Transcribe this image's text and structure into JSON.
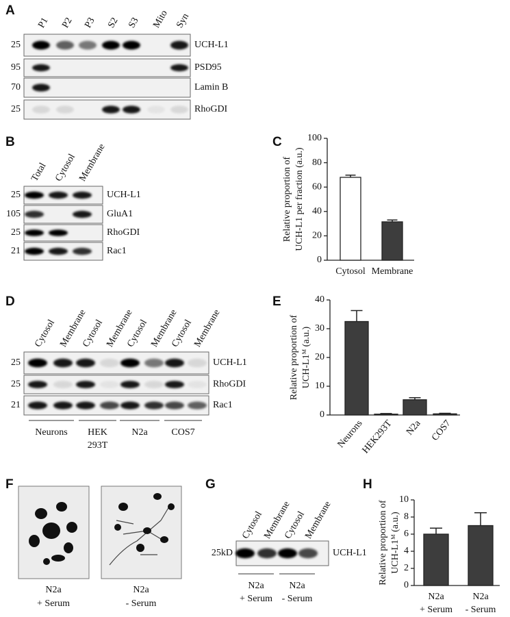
{
  "blots": [
    {
      "letter": "A",
      "lanes": [
        "P1",
        "P2",
        "P3",
        "S2",
        "S3",
        "Mito",
        "Syn"
      ],
      "markers": [
        "25",
        "95",
        "70",
        "25"
      ],
      "proteins": [
        "UCH-L1",
        "PSD95",
        "Lamin B",
        "RhoGDI"
      ]
    },
    {
      "letter": "B",
      "lanes": [
        "Total",
        "Cytosol",
        "Membrane"
      ],
      "markers": [
        "25",
        "105",
        "25",
        "21"
      ],
      "proteins": [
        "UCH-L1",
        "GluA1",
        "RhoGDI",
        "Rac1"
      ]
    },
    {
      "letter": "D",
      "lanes": [
        "Cytosol",
        "Membrane",
        "Cytosol",
        "Membrane",
        "Cytosol",
        "Membrane",
        "Cytosol",
        "Membrane"
      ],
      "markers": [
        "25",
        "25",
        "21"
      ],
      "proteins": [
        "UCH-L1",
        "RhoGDI",
        "Rac1"
      ],
      "groups": [
        [
          "Neurons"
        ],
        [
          "HEK",
          "293T"
        ],
        [
          "N2a"
        ],
        [
          "COS7"
        ]
      ]
    },
    {
      "letter": "G",
      "lanes": [
        "Cytosol",
        "Membrane",
        "Cytosol",
        "Membrane"
      ],
      "markers": [
        "25kD"
      ],
      "proteins": [
        "UCH-L1"
      ],
      "groups": [
        [
          "N2a",
          "+ Serum"
        ],
        [
          "N2a",
          "- Serum"
        ]
      ]
    }
  ],
  "images": {
    "letter": "F",
    "captions": [
      [
        "N2a",
        "+ Serum"
      ],
      [
        "N2a",
        "- Serum"
      ]
    ]
  },
  "chart_data": [
    {
      "type": "bar",
      "letter": "C",
      "ylabel": [
        "Relative proportion of",
        "UCH-L1 per fraction (a.u.)"
      ],
      "categories": [
        [
          "Cytosol"
        ],
        [
          "Membrane"
        ]
      ],
      "values": [
        68,
        31.5
      ],
      "errors": [
        1.8,
        1.5
      ],
      "colors": [
        "#ffffff",
        "#3d3d3d"
      ],
      "ylim": [
        0,
        100
      ],
      "yticks": [
        0,
        20,
        40,
        60,
        80,
        100
      ]
    },
    {
      "type": "bar",
      "letter": "E",
      "ylabel": [
        "Relative proportion of",
        "UCH-L1ᴹ (a.u.)"
      ],
      "categories": [
        [
          "Neurons"
        ],
        [
          "HEK293T"
        ],
        [
          "N2a"
        ],
        [
          "COS7"
        ]
      ],
      "values": [
        32.5,
        0.3,
        5.3,
        0.4
      ],
      "errors": [
        3.8,
        0.2,
        0.7,
        0.2
      ],
      "colors": [
        "#3d3d3d",
        "#3d3d3d",
        "#3d3d3d",
        "#3d3d3d"
      ],
      "ylim": [
        0,
        40
      ],
      "yticks": [
        0,
        10,
        20,
        30,
        40
      ]
    },
    {
      "type": "bar",
      "letter": "H",
      "ylabel": [
        "Relative proportion of",
        "UCH-L1ᴹ (a.u.)"
      ],
      "categories": [
        [
          "N2a",
          "+ Serum"
        ],
        [
          "N2a",
          "- Serum"
        ]
      ],
      "values": [
        6,
        7
      ],
      "errors": [
        0.7,
        1.5
      ],
      "colors": [
        "#3d3d3d",
        "#3d3d3d"
      ],
      "ylim": [
        0,
        10
      ],
      "yticks": [
        0,
        2,
        4,
        6,
        8,
        10
      ]
    }
  ]
}
